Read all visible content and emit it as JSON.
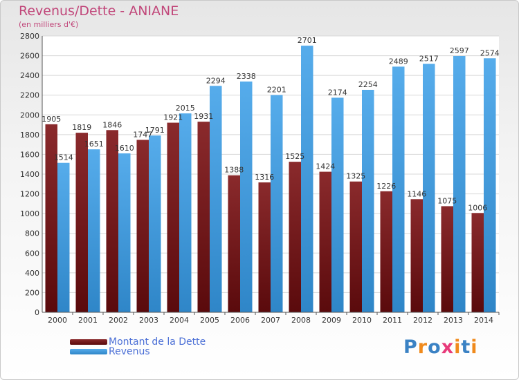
{
  "header": {
    "title": "Revenus/Dette - ANIANE",
    "subtitle": "(en milliers d'€)"
  },
  "chart_data": {
    "type": "bar",
    "categories": [
      "2000",
      "2001",
      "2002",
      "2003",
      "2004",
      "2005",
      "2006",
      "2007",
      "2008",
      "2009",
      "2010",
      "2011",
      "2012",
      "2013",
      "2014"
    ],
    "series": [
      {
        "name": "Montant de la Dette",
        "color": "#7a1c1e",
        "values": [
          1905,
          1819,
          1846,
          1747,
          1921,
          1931,
          1388,
          1316,
          1525,
          1424,
          1325,
          1226,
          1146,
          1075,
          1006
        ],
        "labels": [
          "1905",
          "1819",
          "1846",
          "1747",
          "1921",
          "1931",
          "1388",
          "1316",
          "1525",
          "1424",
          "1325",
          "1226",
          "1146",
          "1075",
          "1006"
        ]
      },
      {
        "name": "Revenus",
        "color": "#4fa6e6",
        "values": [
          1514,
          1651,
          1610,
          1791,
          2015,
          2294,
          2338,
          2201,
          2701,
          2174,
          2254,
          2489,
          2517,
          2597,
          2574
        ],
        "labels": [
          "1514",
          "1651",
          "1610",
          "1791",
          "2015",
          "2294",
          "2338",
          "2201",
          "2701",
          "2174",
          "2254",
          "2489",
          "2517",
          "2597",
          "2574"
        ]
      }
    ],
    "ylim": [
      0,
      2800
    ],
    "yticks": [
      "0",
      "200",
      "400",
      "600",
      "800",
      "1000",
      "1200",
      "1400",
      "1600",
      "1800",
      "2000",
      "2200",
      "2400",
      "2600",
      "2800"
    ],
    "grid": true,
    "legend_position": "bottom-left"
  },
  "legend": {
    "items": [
      {
        "label": "Montant de la Dette",
        "color": "#7a1c1e"
      },
      {
        "label": "Revenus",
        "color": "#4fa6e6"
      }
    ]
  },
  "logo": {
    "text": "Proxiti",
    "letters": [
      "P",
      "r",
      "o",
      "x",
      "i",
      "t",
      "i"
    ],
    "colors": [
      "#3b82c4",
      "#f08a1c",
      "#3b82c4",
      "#e83a7a",
      "#f08a1c",
      "#3b82c4",
      "#f08a1c"
    ]
  }
}
